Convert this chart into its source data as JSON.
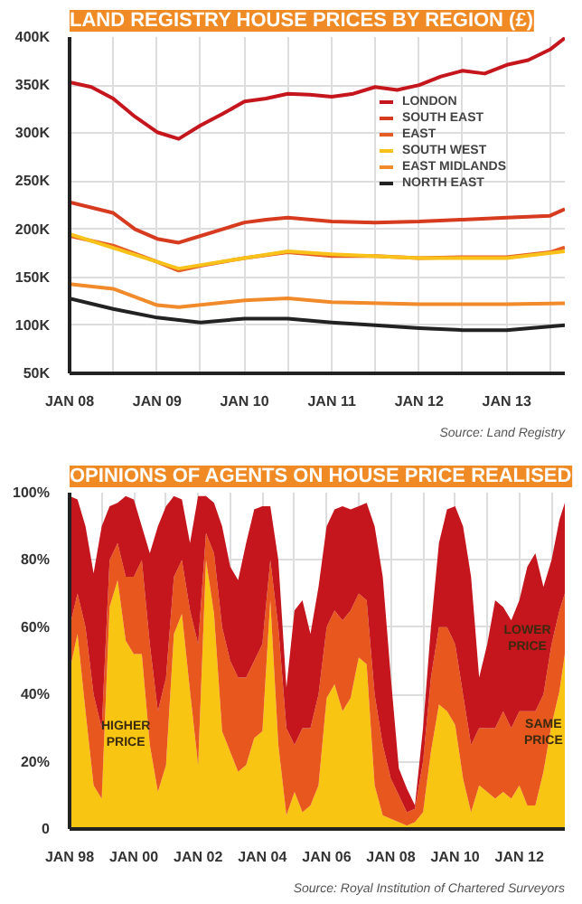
{
  "chart_data": [
    {
      "type": "line",
      "title": "LAND REGISTRY HOUSE PRICES BY REGION (£)",
      "annotations": [
        "Source: Land Registry"
      ],
      "legend": "top right",
      "grid": true,
      "xlim": [
        "2008-01",
        "2013-09"
      ],
      "xticks": [
        {
          "value": "2008-01",
          "label": "JAN 08"
        },
        {
          "value": "2008-07",
          "label": null
        },
        {
          "value": "2009-01",
          "label": "JAN 09"
        },
        {
          "value": "2009-07",
          "label": null
        },
        {
          "value": "2010-01",
          "label": "JAN 10"
        },
        {
          "value": "2010-07",
          "label": null
        },
        {
          "value": "2011-01",
          "label": "JAN 11"
        },
        {
          "value": "2011-07",
          "label": null
        },
        {
          "value": "2012-01",
          "label": "JAN 12"
        },
        {
          "value": "2012-07",
          "label": null
        },
        {
          "value": "2013-01",
          "label": "JAN 13"
        },
        {
          "value": "2013-07",
          "label": null
        }
      ],
      "ylim": [
        50000,
        400000
      ],
      "yticks": [
        {
          "value": 50000,
          "label": "50K"
        },
        {
          "value": 100000,
          "label": "100K"
        },
        {
          "value": 150000,
          "label": "150K"
        },
        {
          "value": 200000,
          "label": "200K"
        },
        {
          "value": 250000,
          "label": "250K"
        },
        {
          "value": 300000,
          "label": "300K"
        },
        {
          "value": 350000,
          "label": "350K"
        },
        {
          "value": 400000,
          "label": "400K"
        }
      ],
      "series": [
        {
          "name": "LONDON",
          "color": "#c4161c",
          "x": [
            "2008-01",
            "2008-04",
            "2008-07",
            "2008-10",
            "2009-01",
            "2009-04",
            "2009-07",
            "2009-10",
            "2010-01",
            "2010-04",
            "2010-07",
            "2010-10",
            "2011-01",
            "2011-04",
            "2011-07",
            "2011-10",
            "2012-01",
            "2012-04",
            "2012-07",
            "2012-10",
            "2013-01",
            "2013-04",
            "2013-07",
            "2013-09"
          ],
          "values": [
            353000,
            348000,
            336000,
            317000,
            301000,
            294000,
            308000,
            320000,
            333000,
            336000,
            341000,
            340000,
            338000,
            341000,
            348000,
            345000,
            350000,
            359000,
            365000,
            362000,
            371000,
            376000,
            387000,
            399000
          ]
        },
        {
          "name": "SOUTH EAST",
          "color": "#d63a1f",
          "x": [
            "2008-01",
            "2008-07",
            "2008-10",
            "2009-01",
            "2009-04",
            "2009-07",
            "2010-01",
            "2010-04",
            "2010-07",
            "2011-01",
            "2011-07",
            "2012-01",
            "2012-07",
            "2013-01",
            "2013-07",
            "2013-09"
          ],
          "values": [
            228000,
            217000,
            200000,
            190000,
            186000,
            193000,
            207000,
            210000,
            212000,
            208000,
            207000,
            208000,
            210000,
            212000,
            214000,
            221000
          ]
        },
        {
          "name": "EAST",
          "color": "#e45b25",
          "x": [
            "2008-01",
            "2008-07",
            "2009-01",
            "2009-04",
            "2009-07",
            "2010-01",
            "2010-07",
            "2011-01",
            "2011-07",
            "2012-01",
            "2012-07",
            "2013-01",
            "2013-07",
            "2013-09"
          ],
          "values": [
            193000,
            183000,
            166000,
            157000,
            162000,
            170000,
            176000,
            172000,
            172000,
            170000,
            171000,
            171000,
            176000,
            181000
          ]
        },
        {
          "name": "SOUTH WEST",
          "color": "#f8c21a",
          "x": [
            "2008-01",
            "2009-04",
            "2010-01",
            "2010-07",
            "2011-01",
            "2012-01",
            "2013-01",
            "2013-09"
          ],
          "values": [
            195000,
            159000,
            170000,
            177000,
            174000,
            170000,
            170000,
            177000
          ]
        },
        {
          "name": "EAST MIDLANDS",
          "color": "#f08a2a",
          "x": [
            "2008-01",
            "2008-07",
            "2009-01",
            "2009-04",
            "2010-01",
            "2010-07",
            "2011-01",
            "2012-01",
            "2013-01",
            "2013-09"
          ],
          "values": [
            143000,
            138000,
            121000,
            119000,
            126000,
            128000,
            124000,
            122000,
            122000,
            123000
          ]
        },
        {
          "name": "NORTH EAST",
          "color": "#222222",
          "x": [
            "2008-01",
            "2008-07",
            "2009-01",
            "2009-07",
            "2010-01",
            "2010-07",
            "2011-01",
            "2011-07",
            "2012-01",
            "2012-07",
            "2013-01",
            "2013-09"
          ],
          "values": [
            128000,
            117000,
            108000,
            103000,
            107000,
            107000,
            103000,
            100000,
            97000,
            95000,
            95000,
            100000
          ]
        }
      ]
    },
    {
      "type": "area",
      "stacked": true,
      "title": "OPINIONS OF AGENTS ON HOUSE PRICE REALISED",
      "annotations": [
        "Source: Royal Institution of Chartered Surveyors"
      ],
      "grid": true,
      "xlim": [
        "1998-01",
        "2013-06"
      ],
      "xticks": [
        {
          "value": "1998-01",
          "label": "JAN 98"
        },
        {
          "value": "1999-01",
          "label": null
        },
        {
          "value": "2000-01",
          "label": "JAN 00"
        },
        {
          "value": "2001-01",
          "label": null
        },
        {
          "value": "2002-01",
          "label": "JAN 02"
        },
        {
          "value": "2003-01",
          "label": null
        },
        {
          "value": "2004-01",
          "label": "JAN 04"
        },
        {
          "value": "2005-01",
          "label": null
        },
        {
          "value": "2006-01",
          "label": "JAN 06"
        },
        {
          "value": "2007-01",
          "label": null
        },
        {
          "value": "2008-01",
          "label": "JAN 08"
        },
        {
          "value": "2009-01",
          "label": null
        },
        {
          "value": "2010-01",
          "label": "JAN 10"
        },
        {
          "value": "2011-01",
          "label": null
        },
        {
          "value": "2012-01",
          "label": "JAN 12"
        },
        {
          "value": "2013-01",
          "label": null
        }
      ],
      "ylim": [
        0,
        100
      ],
      "yticks": [
        0,
        {
          "value": 20,
          "label": "20%"
        },
        {
          "value": 40,
          "label": "40%"
        },
        {
          "value": 60,
          "label": "60%"
        },
        {
          "value": 80,
          "label": "80%"
        },
        {
          "value": 100,
          "label": "100%"
        }
      ],
      "x": [
        "1998-01",
        "1998-04",
        "1998-07",
        "1998-10",
        "1999-01",
        "1999-04",
        "1999-07",
        "1999-10",
        "2000-01",
        "2000-04",
        "2000-07",
        "2000-10",
        "2001-01",
        "2001-04",
        "2001-07",
        "2001-10",
        "2002-01",
        "2002-04",
        "2002-07",
        "2002-10",
        "2003-01",
        "2003-04",
        "2003-07",
        "2003-10",
        "2004-01",
        "2004-04",
        "2004-07",
        "2004-10",
        "2005-01",
        "2005-04",
        "2005-07",
        "2005-10",
        "2006-01",
        "2006-04",
        "2006-07",
        "2006-10",
        "2007-01",
        "2007-04",
        "2007-07",
        "2007-10",
        "2008-01",
        "2008-04",
        "2008-07",
        "2008-10",
        "2009-01",
        "2009-04",
        "2009-07",
        "2009-10",
        "2010-01",
        "2010-04",
        "2010-07",
        "2010-10",
        "2011-01",
        "2011-04",
        "2011-07",
        "2011-10",
        "2012-01",
        "2012-04",
        "2012-07",
        "2012-10",
        "2013-01",
        "2013-04",
        "2013-06"
      ],
      "series": [
        {
          "name": "HIGHER PRICE",
          "color": "#f9c513",
          "values": [
            47,
            58,
            35,
            13,
            9,
            66,
            74,
            56,
            52,
            52,
            25,
            11,
            19,
            58,
            64,
            41,
            19,
            80,
            64,
            29,
            23,
            17,
            19,
            27,
            29,
            68,
            25,
            4,
            11,
            5,
            7,
            13,
            39,
            43,
            35,
            39,
            51,
            49,
            13,
            4,
            3,
            2,
            1,
            2,
            5,
            23,
            37,
            35,
            31,
            15,
            5,
            13,
            11,
            9,
            11,
            9,
            13,
            7,
            7,
            17,
            31,
            41,
            52
          ]
        },
        {
          "name": "SAME PRICE",
          "color": "#e8571e",
          "values": [
            13,
            12,
            25,
            27,
            21,
            14,
            11,
            19,
            23,
            28,
            30,
            24,
            26,
            17,
            16,
            24,
            36,
            8,
            18,
            31,
            27,
            28,
            26,
            23,
            26,
            12,
            35,
            26,
            14,
            25,
            23,
            27,
            21,
            22,
            27,
            26,
            19,
            19,
            27,
            21,
            12,
            8,
            4,
            4,
            15,
            22,
            23,
            25,
            24,
            25,
            20,
            17,
            19,
            21,
            24,
            21,
            22,
            28,
            28,
            23,
            24,
            24,
            18
          ]
        },
        {
          "name": "LOWER PRICE",
          "color": "#c4161c",
          "values": [
            39,
            28,
            30,
            36,
            60,
            16,
            12,
            24,
            23,
            10,
            27,
            55,
            51,
            24,
            18,
            20,
            44,
            11,
            15,
            30,
            28,
            29,
            40,
            45,
            41,
            16,
            20,
            12,
            40,
            38,
            28,
            32,
            30,
            30,
            34,
            30,
            26,
            29,
            50,
            50,
            30,
            8,
            7,
            1,
            10,
            15,
            25,
            35,
            41,
            50,
            50,
            15,
            25,
            38,
            31,
            32,
            33,
            43,
            47,
            32,
            25,
            27,
            27
          ]
        }
      ]
    }
  ]
}
